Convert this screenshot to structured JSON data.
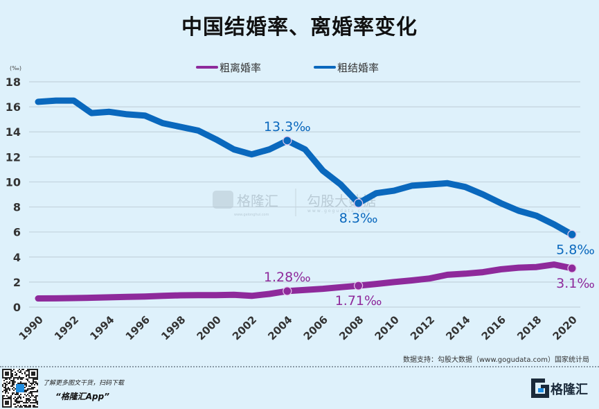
{
  "chart_data": {
    "type": "line",
    "title": "中国结婚率、离婚率变化",
    "ylabel": "(‰)",
    "xlabel": "",
    "ylim": [
      0,
      18
    ],
    "yticks": [
      0,
      2,
      4,
      6,
      8,
      10,
      12,
      14,
      16,
      18
    ],
    "xticks": [
      1990,
      1992,
      1994,
      1996,
      1998,
      2000,
      2002,
      2004,
      2006,
      2008,
      2010,
      2012,
      2014,
      2016,
      2018,
      2020
    ],
    "grid": true,
    "legend_position": "top-center",
    "x": [
      1990,
      1991,
      1992,
      1993,
      1994,
      1995,
      1996,
      1997,
      1998,
      1999,
      2000,
      2001,
      2002,
      2003,
      2004,
      2005,
      2006,
      2007,
      2008,
      2009,
      2010,
      2011,
      2012,
      2013,
      2014,
      2015,
      2016,
      2017,
      2018,
      2019,
      2020
    ],
    "series": [
      {
        "name": "粗离婚率",
        "color": "#8e2a9b",
        "values": [
          0.69,
          0.7,
          0.72,
          0.75,
          0.78,
          0.82,
          0.85,
          0.9,
          0.94,
          0.95,
          0.96,
          0.98,
          0.9,
          1.05,
          1.28,
          1.37,
          1.46,
          1.59,
          1.71,
          1.85,
          2.0,
          2.13,
          2.29,
          2.58,
          2.67,
          2.79,
          3.02,
          3.15,
          3.2,
          3.4,
          3.1
        ],
        "annotations": [
          {
            "year": 2004,
            "label": "1.28‰",
            "pos": "above"
          },
          {
            "year": 2008,
            "label": "1.71‰",
            "pos": "below"
          },
          {
            "year": 2020,
            "label": "3.1‰",
            "pos": "below"
          }
        ]
      },
      {
        "name": "粗结婚率",
        "color": "#0a68bd",
        "values": [
          16.4,
          16.5,
          16.5,
          15.5,
          15.6,
          15.4,
          15.3,
          14.7,
          14.4,
          14.1,
          13.4,
          12.6,
          12.2,
          12.6,
          13.3,
          12.6,
          10.9,
          9.8,
          8.3,
          9.1,
          9.3,
          9.7,
          9.8,
          9.9,
          9.6,
          9.0,
          8.3,
          7.7,
          7.3,
          6.6,
          5.8
        ],
        "annotations": [
          {
            "year": 2004,
            "label": "13.3‰",
            "pos": "above"
          },
          {
            "year": 2008,
            "label": "8.3‰",
            "pos": "below"
          },
          {
            "year": 2020,
            "label": "5.8‰",
            "pos": "below"
          }
        ]
      }
    ]
  },
  "watermark": {
    "brand": "格隆汇",
    "brand_url": "www.gelonghui.com",
    "data_brand": "勾股大数据",
    "data_url": "www.gogudata.com"
  },
  "footer": {
    "source": "数据支持：勾股大数据（www.gogudata.com）国家统计局",
    "promo_line": "了解更多图文干货，扫码下载",
    "app_name": "“格隆汇App”",
    "logo_text": "格隆汇"
  }
}
